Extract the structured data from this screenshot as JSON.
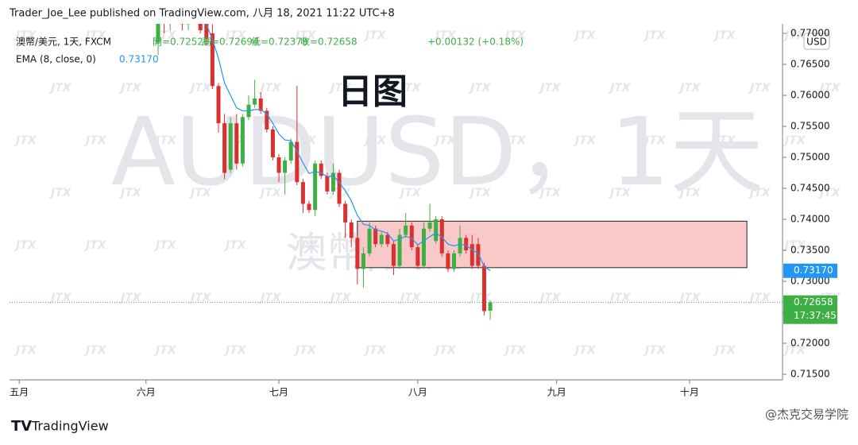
{
  "chart_data": {
    "type": "candlestick",
    "header": "Trader_Joe_Lee published on TradingView.com, 八月 18, 2021 11:22 UTC+8",
    "annotation": "日图",
    "watermark": "AUDUSD，1天",
    "watermark_name": "澳幣/美元",
    "watermark_logo": "JTX",
    "currency": "USD",
    "footer": "TradingView",
    "credit": "@杰克交易学院",
    "legend": {
      "symbol": "澳幣/美元, 1天, FXCM",
      "items": [
        "開=0.72526",
        "高=0.72694",
        "低=0.72379",
        "收=0.72658"
      ],
      "change": "+0.00132 (+0.18%)",
      "ema_name": "EMA (8, close, 0)",
      "ema_label": "0.73170"
    },
    "close_tag": "0.72658",
    "countdown": "17:37:45",
    "up_color": "#3cb043",
    "down_color": "#d9312f",
    "open": [
      0.7685,
      0.774,
      0.772,
      0.7745,
      0.773,
      0.7715,
      0.774,
      0.7725,
      0.7725,
      0.77,
      0.7615,
      0.7555,
      0.748,
      0.7555,
      0.749,
      0.7565,
      0.7585,
      0.7595,
      0.7575,
      0.7545,
      0.75,
      0.7475,
      0.7495,
      0.7525,
      0.746,
      0.7425,
      0.7415,
      0.749,
      0.747,
      0.7445,
      0.7475,
      0.7425,
      0.7395,
      0.737,
      0.732,
      0.7345,
      0.7385,
      0.736,
      0.7375,
      0.736,
      0.7325,
      0.7375,
      0.739,
      0.7355,
      0.7325,
      0.7385,
      0.7365,
      0.74,
      0.7345,
      0.732,
      0.7345,
      0.737,
      0.736,
      0.736,
      0.7325,
      0.72526
    ],
    "high": [
      0.776,
      0.777,
      0.7765,
      0.7765,
      0.7745,
      0.7745,
      0.7755,
      0.7735,
      0.7735,
      0.7715,
      0.762,
      0.757,
      0.7565,
      0.757,
      0.757,
      0.76,
      0.7625,
      0.7605,
      0.758,
      0.755,
      0.7505,
      0.75,
      0.753,
      0.7615,
      0.7465,
      0.743,
      0.7495,
      0.7495,
      0.7475,
      0.749,
      0.748,
      0.743,
      0.74,
      0.7375,
      0.7355,
      0.7395,
      0.739,
      0.738,
      0.738,
      0.7365,
      0.7385,
      0.741,
      0.7395,
      0.736,
      0.7395,
      0.7425,
      0.7405,
      0.7405,
      0.735,
      0.735,
      0.739,
      0.7375,
      0.7375,
      0.737,
      0.733,
      0.72694
    ],
    "low": [
      0.7665,
      0.77,
      0.7705,
      0.7725,
      0.7705,
      0.7705,
      0.7715,
      0.77,
      0.768,
      0.761,
      0.754,
      0.7465,
      0.7475,
      0.748,
      0.7485,
      0.756,
      0.758,
      0.757,
      0.754,
      0.7495,
      0.746,
      0.744,
      0.749,
      0.7455,
      0.741,
      0.741,
      0.7405,
      0.7465,
      0.744,
      0.744,
      0.742,
      0.737,
      0.7355,
      0.7295,
      0.729,
      0.734,
      0.7355,
      0.7355,
      0.7355,
      0.731,
      0.732,
      0.737,
      0.735,
      0.732,
      0.732,
      0.738,
      0.736,
      0.734,
      0.7315,
      0.7315,
      0.734,
      0.7345,
      0.732,
      0.732,
      0.7245,
      0.72379
    ],
    "close": [
      0.774,
      0.772,
      0.7745,
      0.773,
      0.7715,
      0.774,
      0.7725,
      0.7705,
      0.769,
      0.7615,
      0.7555,
      0.7475,
      0.7555,
      0.749,
      0.7565,
      0.7585,
      0.7595,
      0.7575,
      0.7545,
      0.75,
      0.7475,
      0.7495,
      0.7525,
      0.746,
      0.7425,
      0.7415,
      0.749,
      0.747,
      0.7445,
      0.7475,
      0.7425,
      0.7395,
      0.737,
      0.732,
      0.7345,
      0.7385,
      0.736,
      0.7375,
      0.736,
      0.7325,
      0.7375,
      0.739,
      0.7355,
      0.7325,
      0.7385,
      0.7395,
      0.74,
      0.7345,
      0.732,
      0.7345,
      0.737,
      0.735,
      0.7325,
      0.7325,
      0.7252,
      0.72658
    ],
    "ema": {
      "color": "#2196f3",
      "values": [
        0.772,
        0.772,
        0.7725,
        0.7726,
        0.7724,
        0.7727,
        0.7726,
        0.7722,
        0.7715,
        0.769,
        0.766,
        0.762,
        0.76,
        0.758,
        0.7575,
        0.7575,
        0.7577,
        0.7577,
        0.757,
        0.7555,
        0.7538,
        0.7528,
        0.7527,
        0.751,
        0.7491,
        0.7474,
        0.7477,
        0.7475,
        0.7469,
        0.747,
        0.746,
        0.7446,
        0.743,
        0.7406,
        0.7392,
        0.739,
        0.7383,
        0.7381,
        0.7377,
        0.7365,
        0.7368,
        0.7373,
        0.7369,
        0.7359,
        0.7365,
        0.7372,
        0.7378,
        0.7371,
        0.736,
        0.7357,
        0.736,
        0.7358,
        0.7351,
        0.7345,
        0.7324,
        0.7317
      ]
    },
    "zone": {
      "x": [
        33,
        97.5
      ],
      "y": [
        0.7322,
        0.7397
      ],
      "color": "#f9c9c9"
    },
    "xlim": [
      -24.6,
      103.4
    ],
    "xticks": [
      {
        "value": -23,
        "label": "五月"
      },
      {
        "value": -2,
        "label": "六月"
      },
      {
        "value": 20,
        "label": "七月"
      },
      {
        "value": 43,
        "label": "八月"
      },
      {
        "value": 66,
        "label": "九月"
      },
      {
        "value": 88,
        "label": "十月"
      }
    ],
    "ylim": [
      0.7141,
      0.77154
    ],
    "yticks": [
      {
        "value": 0.77,
        "label": "0.77000"
      },
      {
        "value": 0.765,
        "label": "0.76500"
      },
      {
        "value": 0.76,
        "label": "0.76000"
      },
      {
        "value": 0.755,
        "label": "0.75500"
      },
      {
        "value": 0.75,
        "label": "0.75000"
      },
      {
        "value": 0.745,
        "label": "0.74500"
      },
      {
        "value": 0.74,
        "label": "0.74000"
      },
      {
        "value": 0.735,
        "label": "0.73500"
      },
      {
        "value": 0.73,
        "label": "0.73000"
      },
      {
        "value": 0.725,
        "label": "0.72500"
      },
      {
        "value": 0.72,
        "label": "0.72000"
      },
      {
        "value": 0.715,
        "label": "0.71500"
      }
    ]
  }
}
